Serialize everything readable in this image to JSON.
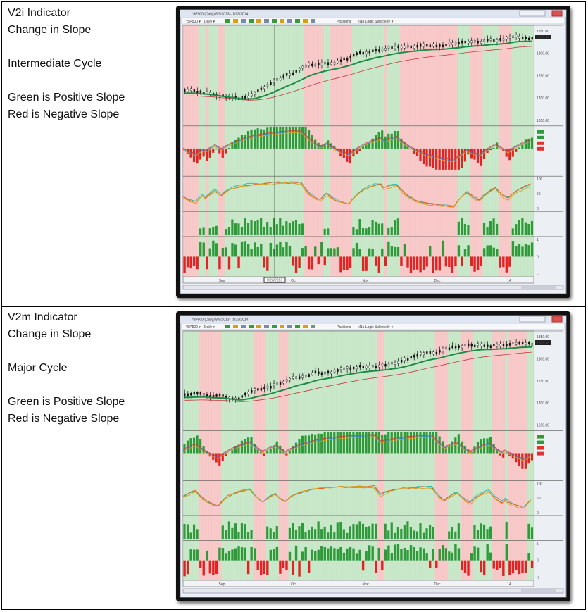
{
  "rows": [
    {
      "title": "V2i Indicator",
      "subtitle": "Change in Slope",
      "cycle": "Intermediate Cycle",
      "legend_green": "Green is Positive Slope",
      "legend_red": "Red is Negative Slope"
    },
    {
      "title": "V2m Indicator",
      "subtitle": "Change in Slope",
      "cycle": "Major Cycle",
      "legend_green": "Green is Positive Slope",
      "legend_red": "Red is Negative Slope"
    }
  ],
  "chart_window": {
    "window_title": "*SP500 (Daily)  8/9/2013 - 1/23/2014",
    "toolbar_symbol": "*SP500",
    "toolbar_interval": "Daily",
    "toolbar_positions": "Positions",
    "toolbar_logic": "<No Logic Selected>",
    "price_ticks": [
      "1850.00",
      "1800.00",
      "1750.00",
      "1700.00",
      "1650.00"
    ],
    "last_price": "1825.40",
    "stoch_ticks": [
      "100",
      "50",
      "0"
    ],
    "bottom_ticks": [
      "1",
      "0",
      "-1"
    ],
    "date_labels": [
      "Sep",
      "Oct",
      "Nov",
      "Dec",
      "14"
    ],
    "cursor_date": "9/23/2013",
    "colors": {
      "positive_band": "#bfe3bf",
      "negative_band": "#f6c0c0",
      "bar_green": "#2f9a3a",
      "bar_red": "#e02424",
      "ma_green": "#1f8a45",
      "ma_red": "#c43a3a"
    }
  }
}
